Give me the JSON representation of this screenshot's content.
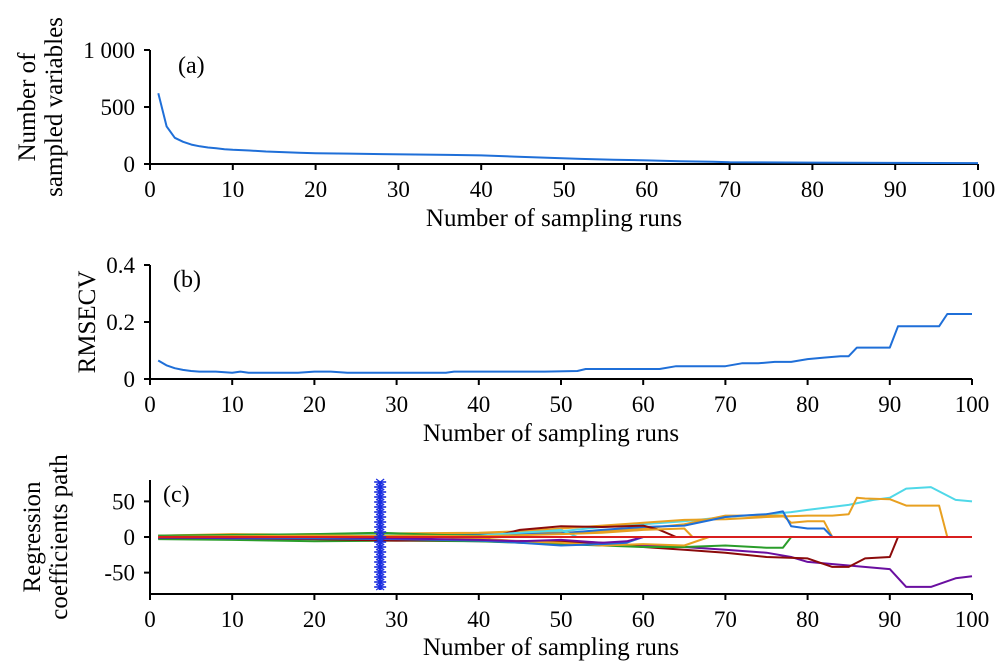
{
  "chart_data": [
    {
      "panel": "(a)",
      "type": "line",
      "ylabel_lines": [
        "Number of",
        "sampled variables"
      ],
      "xlabel": "Number of sampling runs",
      "xlim": [
        0,
        100
      ],
      "ylim": [
        0,
        1000
      ],
      "xticks": [
        0,
        10,
        20,
        30,
        40,
        50,
        60,
        70,
        80,
        90,
        100
      ],
      "yticks": [
        0,
        500,
        1000
      ],
      "ytick_labels": [
        "0",
        "500",
        "1 000"
      ],
      "color": "#1f6fd8",
      "series": [
        {
          "x": [
            1,
            2,
            3,
            4,
            5,
            6,
            7,
            8,
            9,
            10,
            12,
            14,
            16,
            18,
            20,
            24,
            28,
            32,
            36,
            40,
            44,
            48,
            52,
            56,
            60,
            64,
            68,
            70,
            80,
            90,
            100
          ],
          "values": [
            620,
            330,
            230,
            195,
            170,
            155,
            145,
            138,
            130,
            125,
            118,
            110,
            104,
            99,
            95,
            91,
            87,
            83,
            80,
            75,
            65,
            55,
            45,
            38,
            32,
            25,
            20,
            15,
            12,
            10,
            8
          ]
        }
      ]
    },
    {
      "panel": "(b)",
      "type": "line",
      "ylabel": "RMSECV",
      "xlabel": "Number of sampling runs",
      "xlim": [
        0,
        100
      ],
      "ylim": [
        0,
        0.4
      ],
      "xticks": [
        0,
        10,
        20,
        30,
        40,
        50,
        60,
        70,
        80,
        90,
        100
      ],
      "yticks": [
        0,
        0.2,
        0.4
      ],
      "ytick_labels": [
        "0",
        "0.2",
        "0.4"
      ],
      "color": "#1f6fd8",
      "series": [
        {
          "x": [
            1,
            2,
            3,
            4,
            5,
            6,
            8,
            10,
            11,
            12,
            14,
            16,
            18,
            20,
            22,
            24,
            28,
            32,
            36,
            37,
            40,
            44,
            48,
            52,
            53,
            56,
            60,
            62,
            64,
            68,
            70,
            72,
            74,
            76,
            78,
            80,
            82,
            84,
            85,
            86,
            88,
            90,
            91,
            92,
            94,
            96,
            97,
            100
          ],
          "values": [
            0.065,
            0.048,
            0.038,
            0.032,
            0.028,
            0.026,
            0.026,
            0.022,
            0.026,
            0.022,
            0.022,
            0.022,
            0.022,
            0.026,
            0.026,
            0.022,
            0.022,
            0.022,
            0.022,
            0.026,
            0.026,
            0.026,
            0.026,
            0.028,
            0.035,
            0.035,
            0.035,
            0.035,
            0.045,
            0.045,
            0.045,
            0.055,
            0.055,
            0.06,
            0.06,
            0.07,
            0.075,
            0.08,
            0.08,
            0.11,
            0.11,
            0.11,
            0.185,
            0.185,
            0.185,
            0.185,
            0.228,
            0.228
          ]
        }
      ]
    },
    {
      "panel": "(c)",
      "type": "line",
      "ylabel_lines": [
        "Regression",
        "coefficients path"
      ],
      "xlabel": "Number of sampling runs",
      "xlim": [
        0,
        100
      ],
      "ylim": [
        -80,
        80
      ],
      "xticks": [
        0,
        10,
        20,
        30,
        40,
        50,
        60,
        70,
        80,
        90,
        100
      ],
      "yticks": [
        -50,
        0,
        50
      ],
      "ytick_labels": [
        "-50",
        "0",
        "50"
      ],
      "marker_x": 28,
      "marker_color": "#1a2de0",
      "series": [
        {
          "color": "#4fd8e8",
          "x": [
            1,
            10,
            20,
            30,
            40,
            45,
            50,
            55,
            60,
            65,
            70,
            75,
            78,
            80,
            85,
            88,
            90,
            92,
            95,
            98,
            100
          ],
          "values": [
            2,
            3,
            2,
            4,
            5,
            6,
            8,
            14,
            18,
            22,
            28,
            32,
            35,
            38,
            45,
            52,
            55,
            68,
            70,
            52,
            50
          ]
        },
        {
          "color": "#e8a020",
          "x": [
            1,
            10,
            20,
            30,
            40,
            45,
            50,
            55,
            60,
            65,
            70,
            75,
            80,
            83,
            85,
            86,
            87,
            90,
            92,
            95,
            96,
            97
          ],
          "values": [
            1,
            2,
            4,
            5,
            6,
            8,
            12,
            16,
            20,
            24,
            25,
            28,
            30,
            30,
            32,
            55,
            54,
            53,
            44,
            44,
            44,
            0
          ]
        },
        {
          "color": "#e8a020",
          "x": [
            1,
            10,
            20,
            30,
            40,
            50,
            55,
            60,
            65,
            70,
            75,
            77,
            78,
            80,
            82,
            83
          ],
          "values": [
            -1,
            2,
            3,
            4,
            5,
            6,
            8,
            12,
            18,
            30,
            30,
            30,
            20,
            22,
            22,
            0
          ]
        },
        {
          "color": "#1f6fd8",
          "x": [
            1,
            10,
            20,
            30,
            40,
            50,
            55,
            60,
            65,
            70,
            72,
            75,
            76,
            77,
            78,
            80,
            82,
            83
          ],
          "values": [
            0,
            1,
            2,
            2,
            3,
            5,
            10,
            14,
            16,
            28,
            30,
            32,
            34,
            36,
            15,
            12,
            12,
            0
          ]
        },
        {
          "color": "#6a0fa0",
          "x": [
            1,
            10,
            20,
            30,
            40,
            50,
            55,
            60,
            65,
            70,
            75,
            78,
            80,
            85,
            90,
            92,
            95,
            98,
            100
          ],
          "values": [
            -2,
            -3,
            -2,
            -4,
            -6,
            -8,
            -10,
            -12,
            -14,
            -18,
            -22,
            -28,
            -35,
            -40,
            -45,
            -70,
            -70,
            -58,
            -55
          ]
        },
        {
          "color": "#8b0a0a",
          "x": [
            1,
            10,
            20,
            30,
            40,
            50,
            55,
            60,
            65,
            70,
            75,
            80,
            83,
            85,
            87,
            90,
            91
          ],
          "values": [
            -1,
            -2,
            -3,
            -4,
            -5,
            -6,
            -8,
            -14,
            -18,
            -22,
            -28,
            -30,
            -42,
            -42,
            -30,
            -28,
            0
          ]
        },
        {
          "color": "#2a9d2a",
          "x": [
            1,
            10,
            20,
            30,
            40,
            45,
            50,
            55,
            60,
            65,
            70,
            75,
            77,
            78
          ],
          "values": [
            -3,
            -4,
            -6,
            -5,
            -6,
            -8,
            -10,
            -12,
            -14,
            -14,
            -12,
            -15,
            -15,
            0
          ]
        },
        {
          "color": "#8b0a0a",
          "x": [
            1,
            10,
            20,
            30,
            40,
            45,
            50,
            55,
            60,
            62,
            64
          ],
          "values": [
            1,
            -2,
            -3,
            -5,
            -4,
            10,
            15,
            14,
            16,
            10,
            0
          ]
        },
        {
          "color": "#e8a020",
          "x": [
            1,
            10,
            20,
            30,
            40,
            45,
            50,
            55,
            60,
            65,
            68
          ],
          "values": [
            2,
            4,
            3,
            2,
            -2,
            -6,
            -8,
            -12,
            -10,
            -12,
            0
          ]
        },
        {
          "color": "#1f6fd8",
          "x": [
            1,
            10,
            20,
            30,
            40,
            45,
            50,
            55,
            58,
            60
          ],
          "values": [
            0,
            -2,
            -2,
            -3,
            -5,
            -8,
            -12,
            -10,
            -8,
            0
          ]
        },
        {
          "color": "#4fd8e8",
          "x": [
            1,
            10,
            20,
            30,
            40,
            45,
            48,
            50,
            52
          ],
          "values": [
            1,
            2,
            3,
            3,
            2,
            6,
            8,
            10,
            0
          ]
        },
        {
          "color": "#6a0fa0",
          "x": [
            1,
            10,
            20,
            30,
            40,
            45,
            50,
            55,
            58,
            60
          ],
          "values": [
            -1,
            -1,
            0,
            -2,
            -4,
            -6,
            -4,
            -8,
            -6,
            0
          ]
        },
        {
          "color": "#2a9d2a",
          "x": [
            1,
            10,
            20,
            28,
            30,
            35,
            40,
            44
          ],
          "values": [
            2,
            3,
            4,
            6,
            5,
            3,
            2,
            0
          ]
        },
        {
          "color": "#e8a020",
          "x": [
            1,
            10,
            20,
            30,
            40,
            50,
            55,
            60,
            65,
            66
          ],
          "values": [
            0,
            1,
            2,
            2,
            1,
            4,
            6,
            10,
            12,
            0
          ]
        },
        {
          "color": "#d81f1f",
          "x": [
            1,
            20,
            40,
            60,
            80,
            100
          ],
          "values": [
            0,
            0,
            0,
            0,
            0,
            0
          ]
        }
      ]
    }
  ]
}
